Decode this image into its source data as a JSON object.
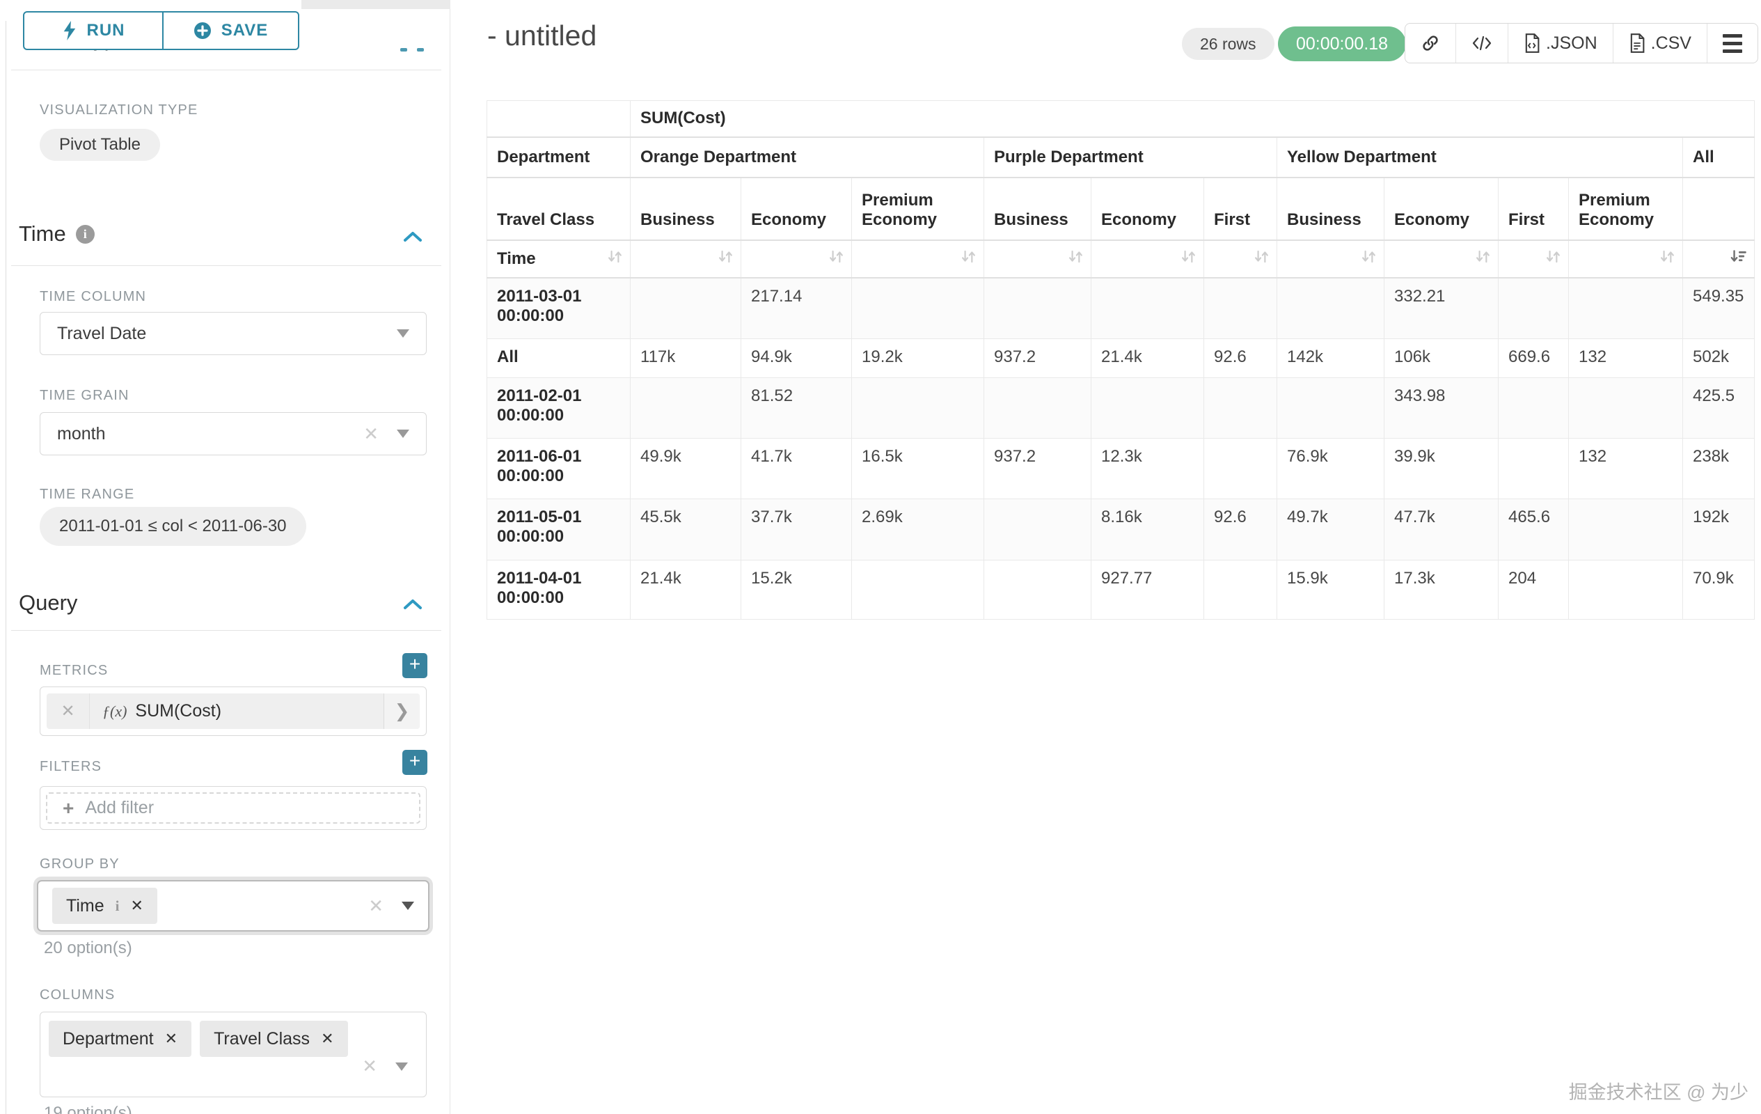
{
  "colors": {
    "accent": "#2d87a3",
    "plus": "#38839f",
    "chevron": "#2e9ac2",
    "success": "#6fbf8e"
  },
  "sidebar": {
    "run_label": "RUN",
    "save_label": "SAVE",
    "chart_type_heading": "Chart Type",
    "viz_type_label": "VISUALIZATION TYPE",
    "viz_type_value": "Pivot Table",
    "time": {
      "title": "Time",
      "time_column_label": "TIME COLUMN",
      "time_column_value": "Travel Date",
      "time_grain_label": "TIME GRAIN",
      "time_grain_value": "month",
      "time_range_label": "TIME RANGE",
      "time_range_value": "2011-01-01 ≤ col < 2011-06-30"
    },
    "query": {
      "title": "Query",
      "metrics_label": "METRICS",
      "metric_fx": "ƒ(x)",
      "metric_value": "SUM(Cost)",
      "filters_label": "FILTERS",
      "add_filter_label": "Add filter",
      "group_by_label": "GROUP BY",
      "group_by_values": [
        "Time"
      ],
      "group_by_option_count": "20 option(s)",
      "columns_label": "COLUMNS",
      "columns_values": [
        "Department",
        "Travel Class"
      ],
      "columns_option_count": "19 option(s)"
    }
  },
  "header": {
    "title": "- untitled",
    "row_count": "26 rows",
    "query_time": "00:00:00.18",
    "export_json_label": ".JSON",
    "export_csv_label": ".CSV"
  },
  "pivot": {
    "metric_header": "SUM(Cost)",
    "row_dim_label": "Department",
    "row_label": "Travel Class",
    "sort_row_label": "Time",
    "col_groups": [
      {
        "label": "Orange Department",
        "cols": [
          "Business",
          "Economy",
          "Premium Economy"
        ]
      },
      {
        "label": "Purple Department",
        "cols": [
          "Business",
          "Economy",
          "First"
        ]
      },
      {
        "label": "Yellow Department",
        "cols": [
          "Business",
          "Economy",
          "First",
          "Premium Economy"
        ]
      },
      {
        "label": "All",
        "cols": [
          ""
        ]
      }
    ],
    "rows": [
      {
        "label": "2011-03-01 00:00:00",
        "values": [
          "",
          "217.14",
          "",
          "",
          "",
          "",
          "",
          "332.21",
          "",
          "",
          "549.35"
        ]
      },
      {
        "label": "All",
        "values": [
          "117k",
          "94.9k",
          "19.2k",
          "937.2",
          "21.4k",
          "92.6",
          "142k",
          "106k",
          "669.6",
          "132",
          "502k"
        ]
      },
      {
        "label": "2011-02-01 00:00:00",
        "values": [
          "",
          "81.52",
          "",
          "",
          "",
          "",
          "",
          "343.98",
          "",
          "",
          "425.5"
        ]
      },
      {
        "label": "2011-06-01 00:00:00",
        "values": [
          "49.9k",
          "41.7k",
          "16.5k",
          "937.2",
          "12.3k",
          "",
          "76.9k",
          "39.9k",
          "",
          "132",
          "238k"
        ]
      },
      {
        "label": "2011-05-01 00:00:00",
        "values": [
          "45.5k",
          "37.7k",
          "2.69k",
          "",
          "8.16k",
          "92.6",
          "49.7k",
          "47.7k",
          "465.6",
          "",
          "192k"
        ]
      },
      {
        "label": "2011-04-01 00:00:00",
        "values": [
          "21.4k",
          "15.2k",
          "",
          "",
          "927.77",
          "",
          "15.9k",
          "17.3k",
          "204",
          "",
          "70.9k"
        ]
      }
    ],
    "sorted_column": "All",
    "sort_direction": "descending"
  },
  "watermark": "掘金技术社区 @ 为少"
}
